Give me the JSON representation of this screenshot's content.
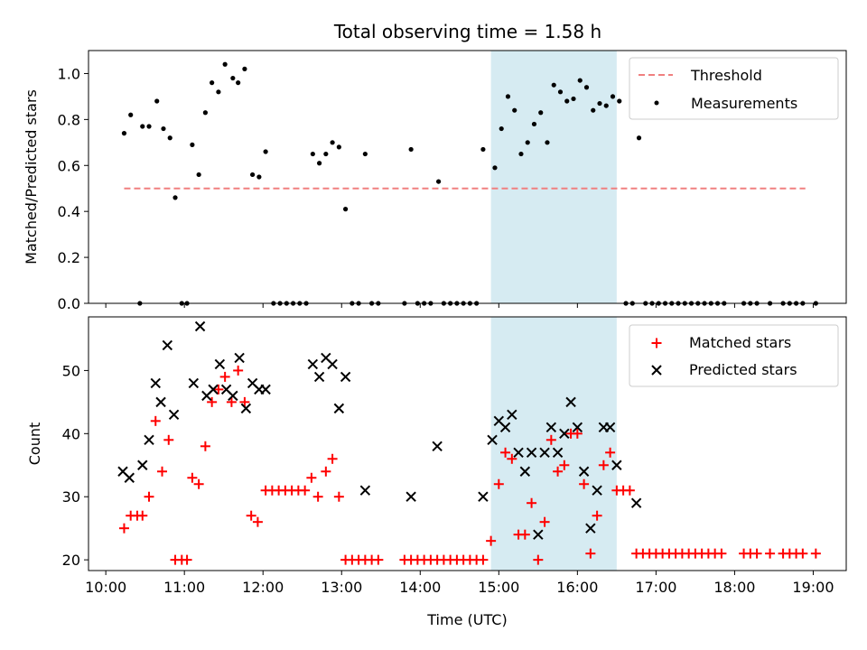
{
  "chart_data": [
    {
      "type": "scatter",
      "title": "Total observing time = 1.58 h",
      "xlabel": "",
      "ylabel": "Matched/Predicted stars",
      "x_range_hours": [
        "10:00",
        "19:00"
      ],
      "xlim_hours": [
        9.78,
        19.42
      ],
      "ylim": [
        0.0,
        1.1
      ],
      "yticks": [
        "0.0",
        "0.2",
        "0.4",
        "0.6",
        "0.8",
        "1.0"
      ],
      "highlight_span": [
        "14:54",
        "16:30"
      ],
      "legend": {
        "position": "top-right",
        "entries": [
          "Threshold",
          "Measurements"
        ]
      },
      "threshold": {
        "name": "Threshold",
        "y": 0.5,
        "x_start": "10:14",
        "x_end": "18:54",
        "color": "#f08080",
        "style": "dashed"
      },
      "series": [
        {
          "name": "Measurements",
          "marker": "dot",
          "color": "#000000",
          "points": [
            [
              "10:14",
              0.74
            ],
            [
              "10:19",
              0.82
            ],
            [
              "10:26",
              0.0
            ],
            [
              "10:28",
              0.77
            ],
            [
              "10:33",
              0.77
            ],
            [
              "10:39",
              0.88
            ],
            [
              "10:44",
              0.76
            ],
            [
              "10:49",
              0.72
            ],
            [
              "10:53",
              0.46
            ],
            [
              "10:58",
              0.0
            ],
            [
              "11:02",
              0.0
            ],
            [
              "11:06",
              0.69
            ],
            [
              "11:11",
              0.56
            ],
            [
              "11:16",
              0.83
            ],
            [
              "11:21",
              0.96
            ],
            [
              "11:26",
              0.92
            ],
            [
              "11:31",
              1.04
            ],
            [
              "11:37",
              0.98
            ],
            [
              "11:41",
              0.96
            ],
            [
              "11:46",
              1.02
            ],
            [
              "11:52",
              0.56
            ],
            [
              "11:57",
              0.55
            ],
            [
              "12:02",
              0.66
            ],
            [
              "12:08",
              0.0
            ],
            [
              "12:13",
              0.0
            ],
            [
              "12:18",
              0.0
            ],
            [
              "12:23",
              0.0
            ],
            [
              "12:28",
              0.0
            ],
            [
              "12:33",
              0.0
            ],
            [
              "12:38",
              0.65
            ],
            [
              "12:43",
              0.61
            ],
            [
              "12:48",
              0.65
            ],
            [
              "12:53",
              0.7
            ],
            [
              "12:58",
              0.68
            ],
            [
              "13:03",
              0.41
            ],
            [
              "13:08",
              0.0
            ],
            [
              "13:13",
              0.0
            ],
            [
              "13:18",
              0.65
            ],
            [
              "13:23",
              0.0
            ],
            [
              "13:28",
              0.0
            ],
            [
              "13:48",
              0.0
            ],
            [
              "13:53",
              0.67
            ],
            [
              "13:58",
              0.0
            ],
            [
              "14:03",
              0.0
            ],
            [
              "14:08",
              0.0
            ],
            [
              "14:14",
              0.53
            ],
            [
              "14:18",
              0.0
            ],
            [
              "14:23",
              0.0
            ],
            [
              "14:28",
              0.0
            ],
            [
              "14:33",
              0.0
            ],
            [
              "14:38",
              0.0
            ],
            [
              "14:43",
              0.0
            ],
            [
              "14:48",
              0.67
            ],
            [
              "14:57",
              0.59
            ],
            [
              "15:02",
              0.76
            ],
            [
              "15:07",
              0.9
            ],
            [
              "15:12",
              0.84
            ],
            [
              "15:17",
              0.65
            ],
            [
              "15:22",
              0.7
            ],
            [
              "15:27",
              0.78
            ],
            [
              "15:32",
              0.83
            ],
            [
              "15:37",
              0.7
            ],
            [
              "15:42",
              0.95
            ],
            [
              "15:47",
              0.92
            ],
            [
              "15:52",
              0.88
            ],
            [
              "15:57",
              0.89
            ],
            [
              "16:02",
              0.97
            ],
            [
              "16:07",
              0.94
            ],
            [
              "16:12",
              0.84
            ],
            [
              "16:17",
              0.87
            ],
            [
              "16:22",
              0.86
            ],
            [
              "16:27",
              0.9
            ],
            [
              "16:32",
              0.88
            ],
            [
              "16:37",
              0.0
            ],
            [
              "16:42",
              0.0
            ],
            [
              "16:47",
              0.72
            ],
            [
              "16:52",
              0.0
            ],
            [
              "16:57",
              0.0
            ],
            [
              "17:02",
              0.0
            ],
            [
              "17:07",
              0.0
            ],
            [
              "17:12",
              0.0
            ],
            [
              "17:17",
              0.0
            ],
            [
              "17:22",
              0.0
            ],
            [
              "17:27",
              0.0
            ],
            [
              "17:32",
              0.0
            ],
            [
              "17:37",
              0.0
            ],
            [
              "17:42",
              0.0
            ],
            [
              "17:47",
              0.0
            ],
            [
              "17:52",
              0.0
            ],
            [
              "18:07",
              0.0
            ],
            [
              "18:12",
              0.0
            ],
            [
              "18:17",
              0.0
            ],
            [
              "18:27",
              0.0
            ],
            [
              "18:37",
              0.0
            ],
            [
              "18:42",
              0.0
            ],
            [
              "18:47",
              0.0
            ],
            [
              "18:52",
              0.0
            ],
            [
              "19:02",
              0.0
            ]
          ]
        }
      ]
    },
    {
      "type": "scatter",
      "title": "",
      "xlabel": "Time (UTC)",
      "ylabel": "Count",
      "xticks": [
        "10:00",
        "11:00",
        "12:00",
        "13:00",
        "14:00",
        "15:00",
        "16:00",
        "17:00",
        "18:00",
        "19:00"
      ],
      "xlim_hours": [
        9.78,
        19.42
      ],
      "ylim": [
        18.3,
        58.5
      ],
      "yticks": [
        "20",
        "30",
        "40",
        "50"
      ],
      "highlight_span": [
        "14:54",
        "16:30"
      ],
      "legend": {
        "position": "top-right",
        "entries": [
          "Matched stars",
          "Predicted stars"
        ]
      },
      "series": [
        {
          "name": "Matched stars",
          "marker": "plus",
          "color": "#ff0000",
          "points": [
            [
              "10:14",
              25
            ],
            [
              "10:19",
              27
            ],
            [
              "10:24",
              27
            ],
            [
              "10:28",
              27
            ],
            [
              "10:33",
              30
            ],
            [
              "10:38",
              42
            ],
            [
              "10:43",
              34
            ],
            [
              "10:48",
              39
            ],
            [
              "10:53",
              20
            ],
            [
              "10:58",
              20
            ],
            [
              "11:02",
              20
            ],
            [
              "11:06",
              33
            ],
            [
              "11:11",
              32
            ],
            [
              "11:16",
              38
            ],
            [
              "11:21",
              45
            ],
            [
              "11:26",
              47
            ],
            [
              "11:31",
              49
            ],
            [
              "11:36",
              45
            ],
            [
              "11:41",
              50
            ],
            [
              "11:46",
              45
            ],
            [
              "11:51",
              27
            ],
            [
              "11:56",
              26
            ],
            [
              "12:02",
              31
            ],
            [
              "12:07",
              31
            ],
            [
              "12:12",
              31
            ],
            [
              "12:17",
              31
            ],
            [
              "12:22",
              31
            ],
            [
              "12:27",
              31
            ],
            [
              "12:32",
              31
            ],
            [
              "12:37",
              33
            ],
            [
              "12:42",
              30
            ],
            [
              "12:48",
              34
            ],
            [
              "12:53",
              36
            ],
            [
              "12:58",
              30
            ],
            [
              "13:03",
              20
            ],
            [
              "13:08",
              20
            ],
            [
              "13:13",
              20
            ],
            [
              "13:18",
              20
            ],
            [
              "13:23",
              20
            ],
            [
              "13:28",
              20
            ],
            [
              "13:48",
              20
            ],
            [
              "13:53",
              20
            ],
            [
              "13:58",
              20
            ],
            [
              "14:03",
              20
            ],
            [
              "14:08",
              20
            ],
            [
              "14:13",
              20
            ],
            [
              "14:18",
              20
            ],
            [
              "14:23",
              20
            ],
            [
              "14:28",
              20
            ],
            [
              "14:33",
              20
            ],
            [
              "14:38",
              20
            ],
            [
              "14:43",
              20
            ],
            [
              "14:48",
              20
            ],
            [
              "14:54",
              23
            ],
            [
              "15:00",
              32
            ],
            [
              "15:05",
              37
            ],
            [
              "15:10",
              36
            ],
            [
              "15:15",
              24
            ],
            [
              "15:20",
              24
            ],
            [
              "15:25",
              29
            ],
            [
              "15:30",
              20
            ],
            [
              "15:35",
              26
            ],
            [
              "15:40",
              39
            ],
            [
              "15:45",
              34
            ],
            [
              "15:50",
              35
            ],
            [
              "15:55",
              40
            ],
            [
              "16:00",
              40
            ],
            [
              "16:05",
              32
            ],
            [
              "16:10",
              21
            ],
            [
              "16:15",
              27
            ],
            [
              "16:20",
              35
            ],
            [
              "16:25",
              37
            ],
            [
              "16:30",
              31
            ],
            [
              "16:35",
              31
            ],
            [
              "16:40",
              31
            ],
            [
              "16:45",
              21
            ],
            [
              "16:50",
              21
            ],
            [
              "16:55",
              21
            ],
            [
              "17:00",
              21
            ],
            [
              "17:05",
              21
            ],
            [
              "17:10",
              21
            ],
            [
              "17:15",
              21
            ],
            [
              "17:20",
              21
            ],
            [
              "17:25",
              21
            ],
            [
              "17:30",
              21
            ],
            [
              "17:35",
              21
            ],
            [
              "17:40",
              21
            ],
            [
              "17:45",
              21
            ],
            [
              "17:50",
              21
            ],
            [
              "18:07",
              21
            ],
            [
              "18:12",
              21
            ],
            [
              "18:17",
              21
            ],
            [
              "18:27",
              21
            ],
            [
              "18:37",
              21
            ],
            [
              "18:42",
              21
            ],
            [
              "18:47",
              21
            ],
            [
              "18:52",
              21
            ],
            [
              "19:02",
              21
            ]
          ]
        },
        {
          "name": "Predicted stars",
          "marker": "x",
          "color": "#000000",
          "points": [
            [
              "10:13",
              34
            ],
            [
              "10:18",
              33
            ],
            [
              "10:28",
              35
            ],
            [
              "10:33",
              39
            ],
            [
              "10:38",
              48
            ],
            [
              "10:42",
              45
            ],
            [
              "10:47",
              54
            ],
            [
              "10:52",
              43
            ],
            [
              "11:07",
              48
            ],
            [
              "11:12",
              57
            ],
            [
              "11:17",
              46
            ],
            [
              "11:22",
              47
            ],
            [
              "11:27",
              51
            ],
            [
              "11:32",
              47
            ],
            [
              "11:37",
              46
            ],
            [
              "11:42",
              52
            ],
            [
              "11:47",
              44
            ],
            [
              "11:52",
              48
            ],
            [
              "11:57",
              47
            ],
            [
              "12:02",
              47
            ],
            [
              "12:38",
              51
            ],
            [
              "12:43",
              49
            ],
            [
              "12:48",
              52
            ],
            [
              "12:53",
              51
            ],
            [
              "12:58",
              44
            ],
            [
              "13:03",
              49
            ],
            [
              "13:18",
              31
            ],
            [
              "13:53",
              30
            ],
            [
              "14:13",
              38
            ],
            [
              "14:48",
              30
            ],
            [
              "14:55",
              39
            ],
            [
              "15:00",
              42
            ],
            [
              "15:05",
              41
            ],
            [
              "15:10",
              43
            ],
            [
              "15:15",
              37
            ],
            [
              "15:20",
              34
            ],
            [
              "15:25",
              37
            ],
            [
              "15:30",
              24
            ],
            [
              "15:35",
              37
            ],
            [
              "15:40",
              41
            ],
            [
              "15:45",
              37
            ],
            [
              "15:50",
              40
            ],
            [
              "15:55",
              45
            ],
            [
              "16:00",
              41
            ],
            [
              "16:05",
              34
            ],
            [
              "16:10",
              25
            ],
            [
              "16:15",
              31
            ],
            [
              "16:20",
              41
            ],
            [
              "16:25",
              41
            ],
            [
              "16:30",
              35
            ],
            [
              "16:45",
              29
            ]
          ]
        }
      ]
    }
  ]
}
